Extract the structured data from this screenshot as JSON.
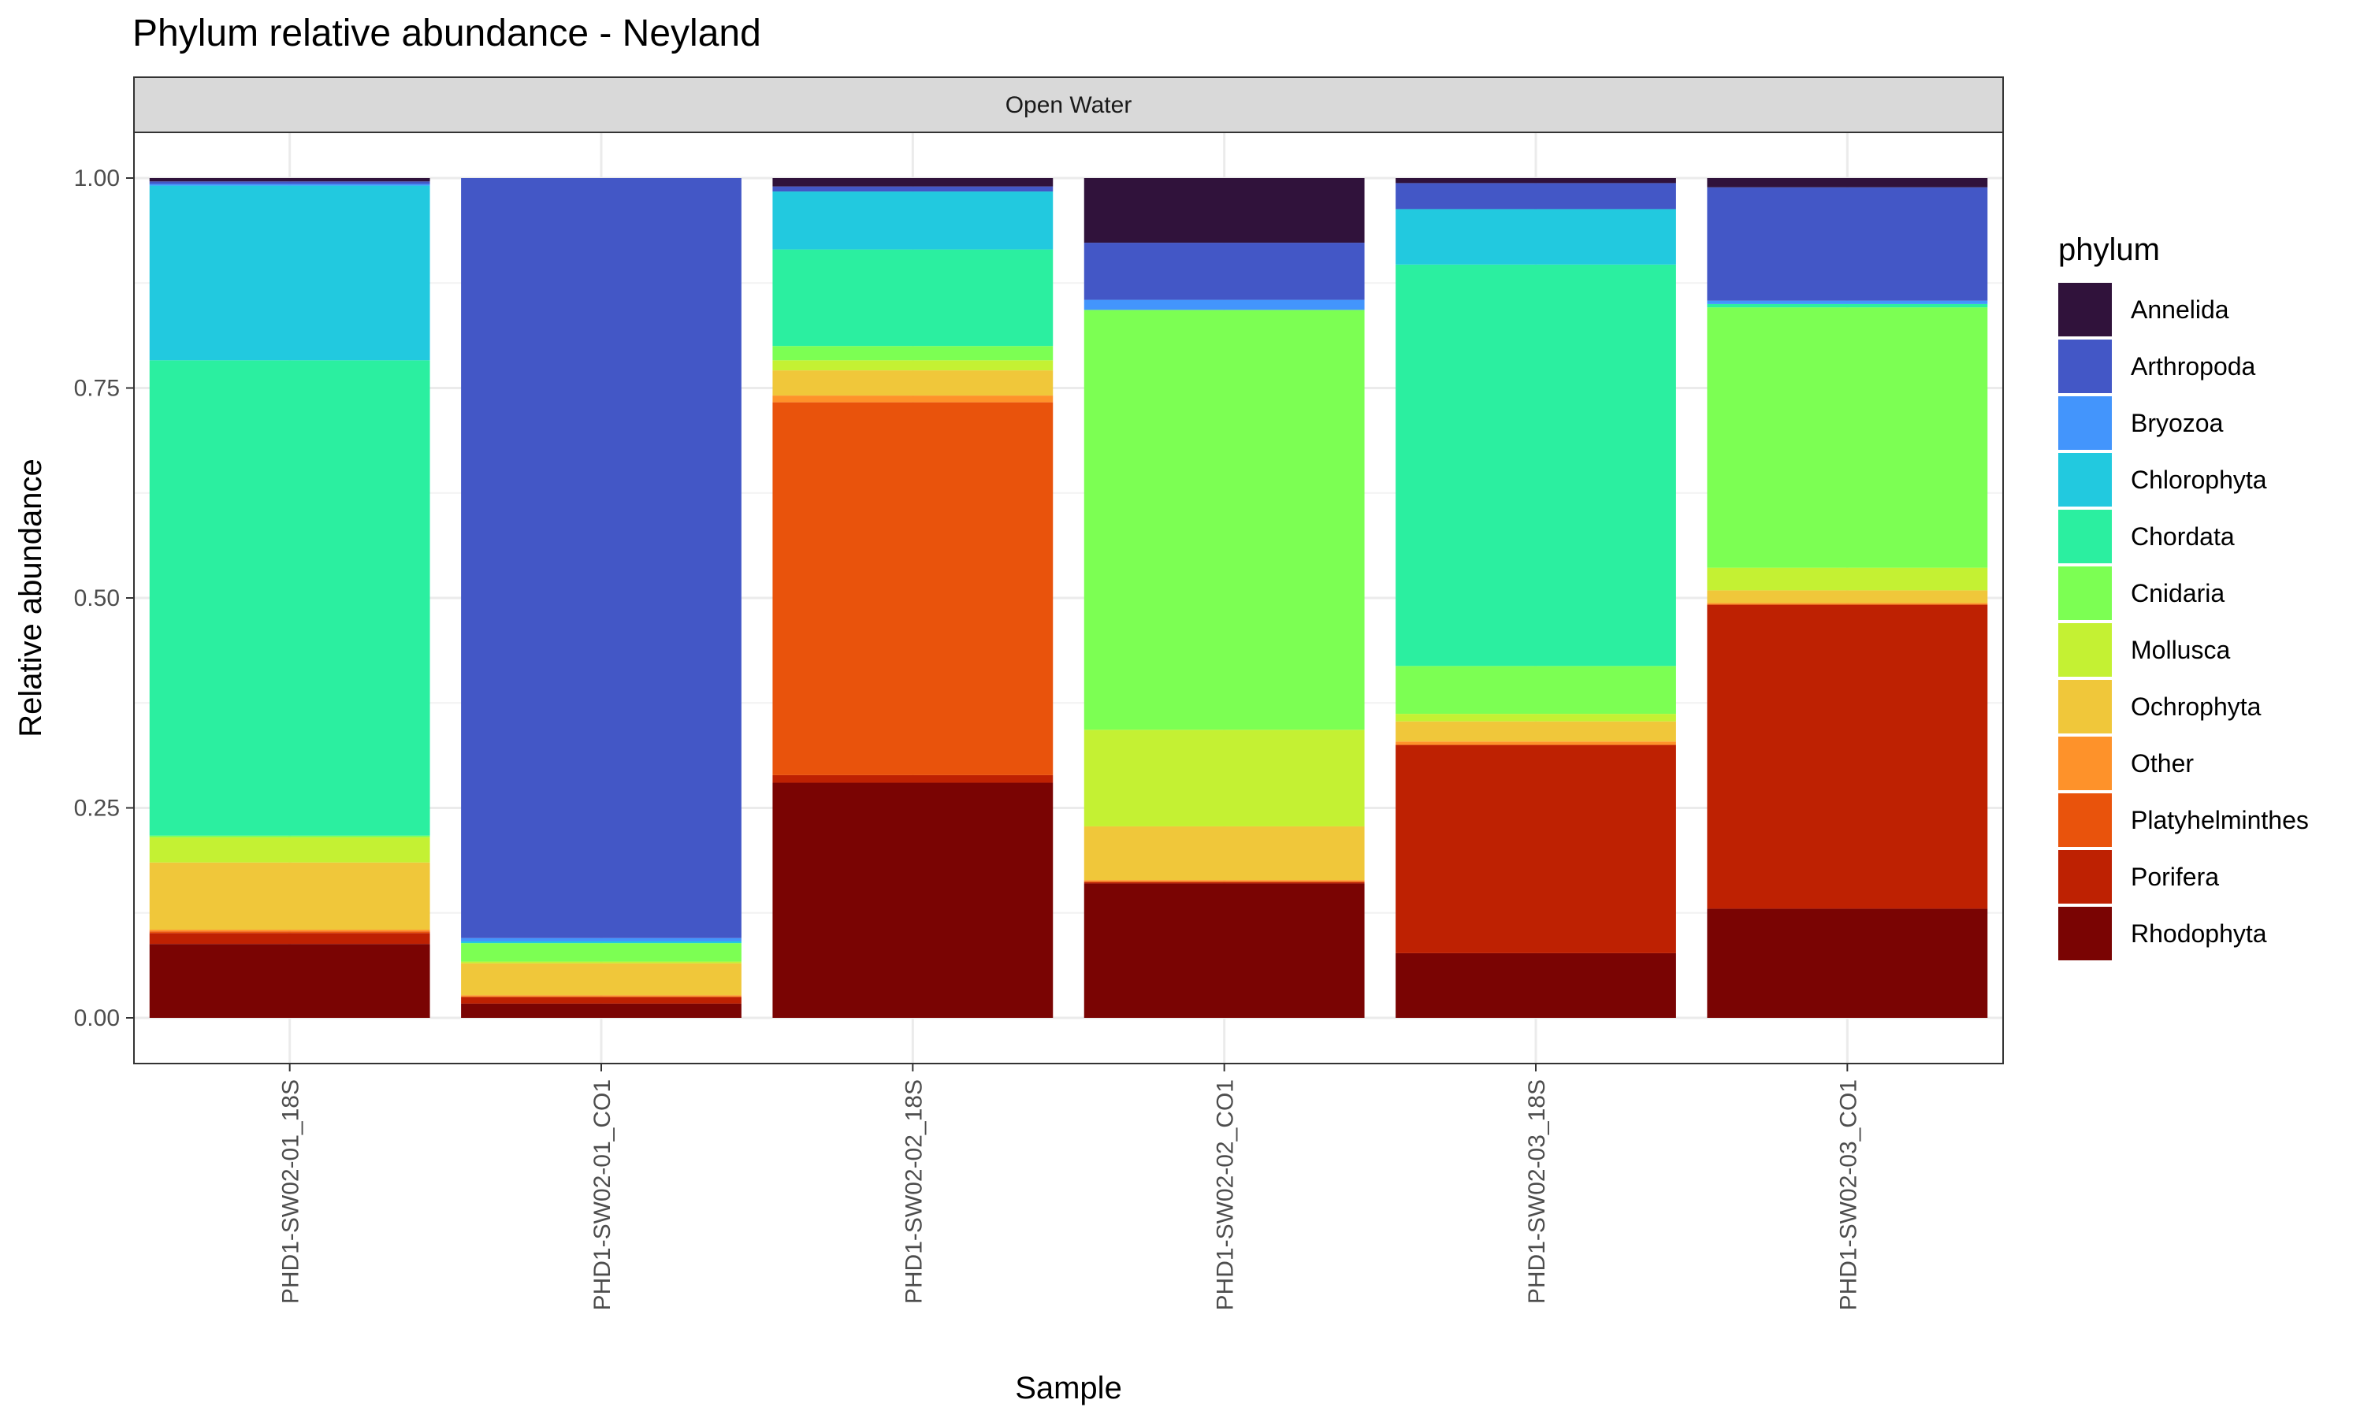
{
  "chart_data": {
    "type": "bar",
    "stacked": true,
    "title": "Phylum relative abundance - Neyland",
    "facet_label": "Open Water",
    "xlabel": "Sample",
    "ylabel": "Relative abundance",
    "ylim": [
      0,
      1.05
    ],
    "yticks": [
      0,
      0.25,
      0.5,
      0.75,
      1.0
    ],
    "ytick_labels": [
      "0.00",
      "0.25",
      "0.50",
      "0.75",
      "1.00"
    ],
    "grid": true,
    "legend_title": "phylum",
    "legend_position": "right",
    "categories": [
      "PHD1-SW02-01_18S",
      "PHD1-SW02-01_CO1",
      "PHD1-SW02-02_18S",
      "PHD1-SW02-02_CO1",
      "PHD1-SW02-03_18S",
      "PHD1-SW02-03_CO1"
    ],
    "series": [
      {
        "name": "Rhodophyta",
        "color": "#7A0403",
        "values": [
          0.088,
          0.017,
          0.28,
          0.16,
          0.077,
          0.13
        ]
      },
      {
        "name": "Porifera",
        "color": "#BE2102",
        "values": [
          0.013,
          0.008,
          0.009,
          0.002,
          0.248,
          0.362
        ]
      },
      {
        "name": "Platyhelminthes",
        "color": "#E9530C",
        "values": [
          0.002,
          0.0,
          0.444,
          0.0,
          0.0,
          0.0
        ]
      },
      {
        "name": "Other",
        "color": "#FE922A",
        "values": [
          0.002,
          0.002,
          0.008,
          0.002,
          0.004,
          0.002
        ]
      },
      {
        "name": "Ochrophyta",
        "color": "#F0C73A",
        "values": [
          0.08,
          0.038,
          0.03,
          0.064,
          0.024,
          0.015
        ]
      },
      {
        "name": "Mollusca",
        "color": "#C4F133",
        "values": [
          0.03,
          0.002,
          0.012,
          0.115,
          0.009,
          0.027
        ]
      },
      {
        "name": "Cnidaria",
        "color": "#7CFF53",
        "values": [
          0.002,
          0.022,
          0.017,
          0.5,
          0.057,
          0.31
        ]
      },
      {
        "name": "Chordata",
        "color": "#2BEFA0",
        "values": [
          0.566,
          0.0,
          0.115,
          0.0,
          0.478,
          0.004
        ]
      },
      {
        "name": "Chlorophyta",
        "color": "#22C9DF",
        "values": [
          0.208,
          0.002,
          0.069,
          0.0,
          0.066,
          0.0
        ]
      },
      {
        "name": "Bryozoa",
        "color": "#4395FC",
        "values": [
          0.002,
          0.004,
          0.0,
          0.012,
          0.0,
          0.004
        ]
      },
      {
        "name": "Arthropoda",
        "color": "#4357C6",
        "values": [
          0.003,
          0.905,
          0.006,
          0.068,
          0.031,
          0.135
        ]
      },
      {
        "name": "Annelida",
        "color": "#30123B",
        "values": [
          0.004,
          0.0,
          0.01,
          0.077,
          0.006,
          0.011
        ]
      }
    ],
    "legend_order": [
      "Annelida",
      "Arthropoda",
      "Bryozoa",
      "Chlorophyta",
      "Chordata",
      "Cnidaria",
      "Mollusca",
      "Ochrophyta",
      "Other",
      "Platyhelminthes",
      "Porifera",
      "Rhodophyta"
    ]
  }
}
